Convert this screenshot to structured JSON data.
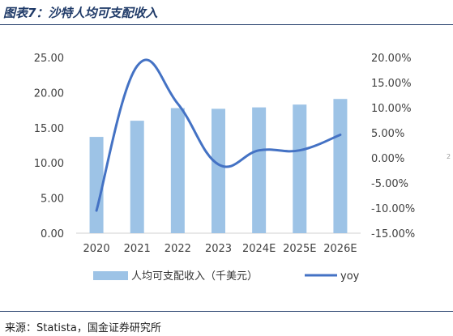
{
  "figure_title": "图表7：沙特人均可支配收入",
  "source": "来源：Statista，国金证券研究所",
  "page_mark": "2",
  "chart_data": {
    "type": "bar",
    "categories": [
      "2020",
      "2021",
      "2022",
      "2023",
      "2024E",
      "2025E",
      "2026E"
    ],
    "series": [
      {
        "name": "人均可支配收入（千美元）",
        "type": "bar",
        "axis": "left",
        "color": "#9dc3e6",
        "values": [
          13.7,
          16.0,
          17.8,
          17.7,
          17.9,
          18.3,
          19.1
        ]
      },
      {
        "name": "yoy",
        "type": "line",
        "axis": "right",
        "color": "#4472c4",
        "values": [
          -10.5,
          18.3,
          10.8,
          -1.3,
          1.5,
          1.5,
          4.6
        ]
      }
    ],
    "y_left": {
      "ylim": [
        0,
        25
      ],
      "ticks": [
        0,
        5,
        10,
        15,
        20,
        25
      ],
      "tick_labels": [
        "0.00",
        "5.00",
        "10.00",
        "15.00",
        "20.00",
        "25.00"
      ]
    },
    "y_right": {
      "ylim": [
        -15,
        20
      ],
      "ticks": [
        -15,
        -10,
        -5,
        0,
        5,
        10,
        15,
        20
      ],
      "tick_labels": [
        "-15.00%",
        "-10.00%",
        "-5.00%",
        "0.00%",
        "5.00%",
        "10.00%",
        "15.00%",
        "20.00%"
      ]
    },
    "grid": false,
    "legend_position": "bottom"
  }
}
